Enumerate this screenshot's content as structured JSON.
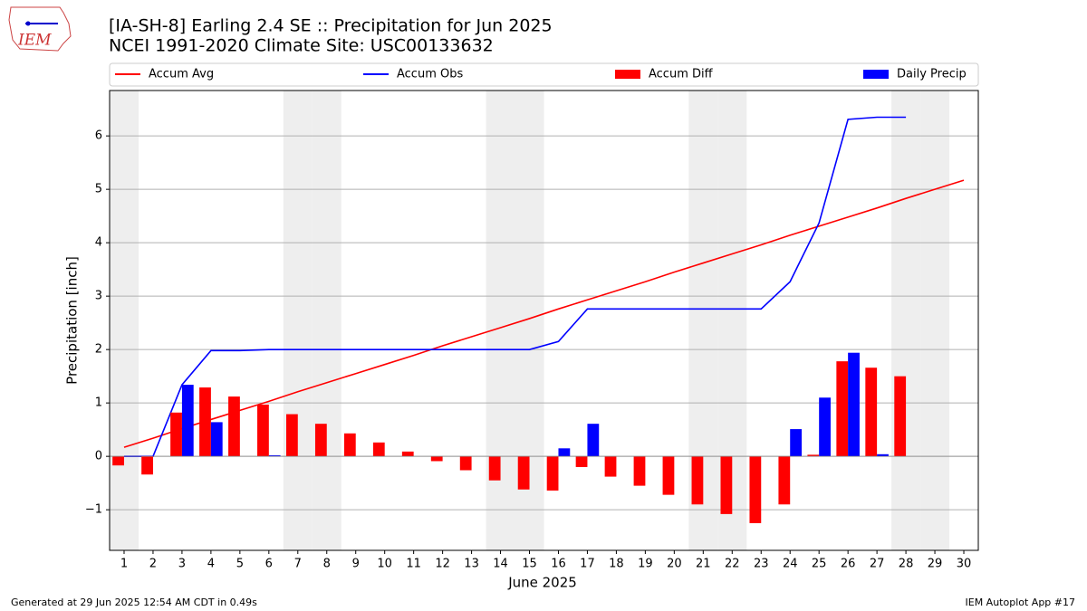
{
  "chart_data": {
    "type": "combo",
    "title": "[IA-SH-8] Earling 2.4 SE :: Precipitation for Jun 2025",
    "subtitle": "NCEI 1991-2020 Climate Site: USC00133632",
    "logo_text": "IEM",
    "xlabel": "June 2025",
    "ylabel": "Precipitation [inch]",
    "footer_left": "Generated at 29 Jun 2025 12:54 AM CDT in 0.49s",
    "footer_right": "IEM Autoplot App #17",
    "x": [
      1,
      2,
      3,
      4,
      5,
      6,
      7,
      8,
      9,
      10,
      11,
      12,
      13,
      14,
      15,
      16,
      17,
      18,
      19,
      20,
      21,
      22,
      23,
      24,
      25,
      26,
      27,
      28,
      29,
      30
    ],
    "xlim": [
      0.5,
      30.5
    ],
    "xticks": [
      1,
      2,
      3,
      4,
      5,
      6,
      7,
      8,
      9,
      10,
      11,
      12,
      13,
      14,
      15,
      16,
      17,
      18,
      19,
      20,
      21,
      22,
      23,
      24,
      25,
      26,
      27,
      28,
      29,
      30
    ],
    "ylim": [
      -1.76,
      6.85
    ],
    "yticks": [
      {
        "value": -1,
        "label": "−1"
      },
      0,
      1,
      2,
      3,
      4,
      5,
      6
    ],
    "grid": true,
    "shaded_x": [
      1,
      7,
      8,
      14,
      15,
      21,
      22,
      28,
      29
    ],
    "shade_color": "#eeeeee",
    "series": [
      {
        "name": "Accum Avg",
        "type": "line",
        "color": "#ff0000",
        "values": [
          0.17,
          0.34,
          0.52,
          0.69,
          0.86,
          1.03,
          1.21,
          1.38,
          1.55,
          1.72,
          1.89,
          2.07,
          2.24,
          2.41,
          2.58,
          2.76,
          2.93,
          3.1,
          3.27,
          3.45,
          3.62,
          3.79,
          3.96,
          4.14,
          4.31,
          4.48,
          4.65,
          4.83,
          5.0,
          5.17
        ]
      },
      {
        "name": "Accum Obs",
        "type": "line",
        "color": "#0000ff",
        "values": [
          0,
          0,
          1.34,
          1.98,
          1.98,
          2.0,
          2.0,
          2.0,
          2.0,
          2.0,
          2.0,
          2.0,
          2.0,
          2.0,
          2.0,
          2.15,
          2.76,
          2.76,
          2.76,
          2.76,
          2.76,
          2.76,
          2.76,
          3.27,
          4.37,
          6.31,
          6.35,
          6.35,
          null,
          null
        ]
      },
      {
        "name": "Accum Diff",
        "type": "bar",
        "color": "#ff0000",
        "values": [
          -0.17,
          -0.34,
          0.82,
          1.29,
          1.12,
          0.97,
          0.79,
          0.61,
          0.43,
          0.26,
          0.09,
          -0.09,
          -0.26,
          -0.45,
          -0.62,
          -0.64,
          -0.2,
          -0.38,
          -0.55,
          -0.72,
          -0.9,
          -1.08,
          -1.25,
          -0.9,
          0.03,
          1.78,
          1.66,
          1.5,
          null,
          null
        ]
      },
      {
        "name": "Daily Precip",
        "type": "bar",
        "color": "#0000ff",
        "values": [
          0,
          0,
          1.34,
          0.64,
          0,
          0.02,
          0,
          0,
          0,
          0,
          0,
          0,
          0,
          0,
          0,
          0.15,
          0.61,
          0,
          0,
          0,
          0,
          0,
          0,
          0.51,
          1.1,
          1.94,
          0.04,
          0,
          null,
          null
        ]
      }
    ]
  }
}
